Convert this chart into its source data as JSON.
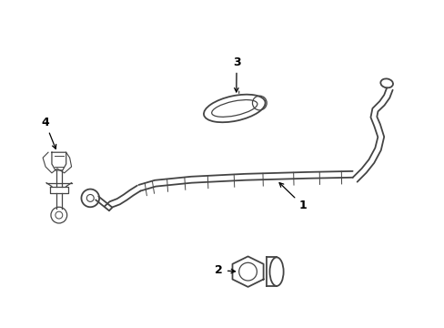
{
  "background_color": "#ffffff",
  "line_color": "#444444",
  "label_color": "#000000",
  "fig_width": 4.89,
  "fig_height": 3.6,
  "dpi": 100,
  "label_fontsize": 9
}
